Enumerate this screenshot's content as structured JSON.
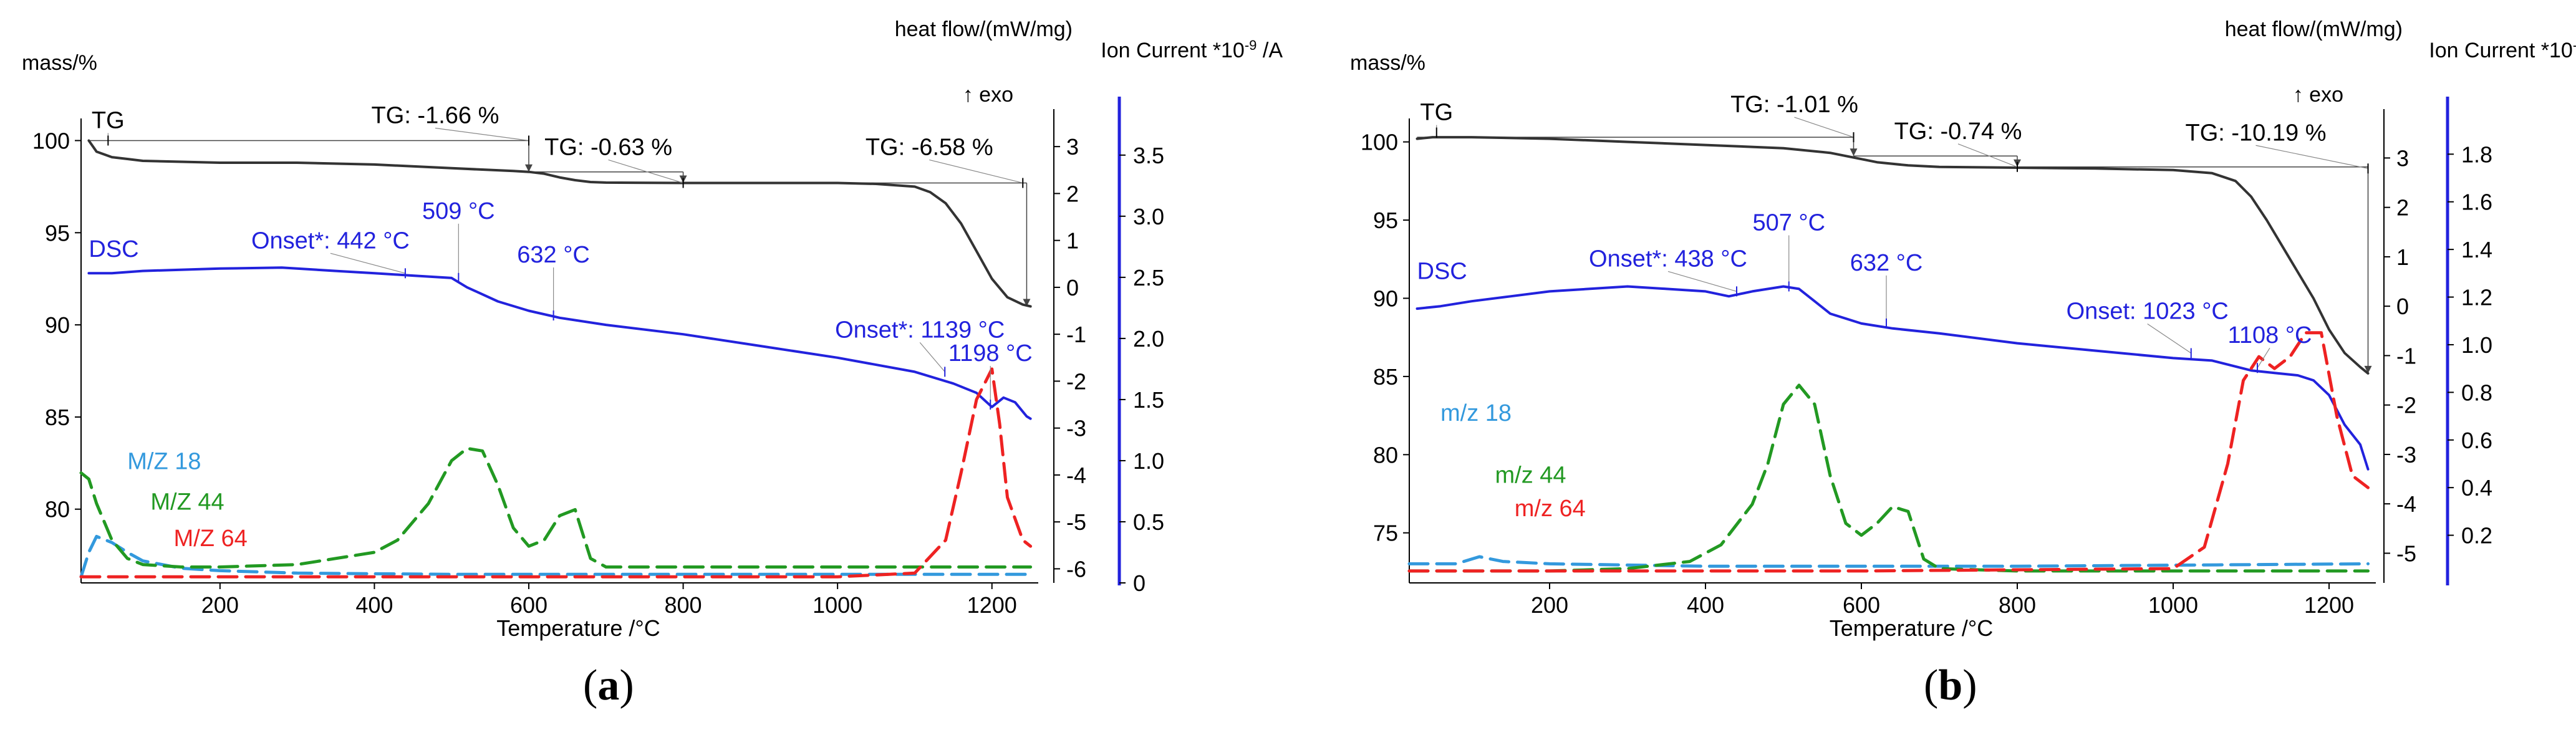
{
  "chart_data": [
    {
      "type": "line",
      "panel": "a",
      "caption": {
        "open": "(",
        "letter": "a",
        "close": ")"
      },
      "xlabel": "Temperature /°C",
      "xlim": [
        20,
        1260
      ],
      "xticks": [
        200,
        400,
        600,
        800,
        1000,
        1200
      ],
      "y_mass": {
        "label": "mass/%",
        "lim": [
          76,
          101.2
        ],
        "ticks": [
          80,
          85,
          90,
          95,
          100
        ]
      },
      "y_heat": {
        "label": "heat flow/(mW/mg)",
        "exo": "↑ exo",
        "lim": [
          -6.3,
          3.6
        ],
        "ticks": [
          3,
          2,
          1,
          0,
          -1,
          -2,
          -3,
          -4,
          -5,
          -6
        ]
      },
      "y_ion": {
        "label": "Ion Current *10",
        "label_sup": "-9",
        "label_unit": " /A",
        "lim": [
          0,
          3.8
        ],
        "ticks": [
          0,
          0.5,
          1.0,
          1.5,
          2.0,
          2.5,
          3.0,
          3.5
        ],
        "tick_labels": [
          "0",
          "0.5",
          "1.0",
          "1.5",
          "2.0",
          "2.5",
          "3.0",
          "3.5"
        ]
      },
      "series": [
        {
          "name": "TG",
          "axis": "mass",
          "color": "#333333",
          "dash": "solid",
          "x": [
            30,
            40,
            60,
            80,
            100,
            150,
            200,
            300,
            400,
            500,
            580,
            600,
            620,
            640,
            660,
            680,
            700,
            800,
            900,
            1000,
            1050,
            1100,
            1120,
            1140,
            1160,
            1180,
            1200,
            1220,
            1240,
            1250
          ],
          "y": [
            100,
            99.4,
            99.1,
            99.0,
            98.9,
            98.85,
            98.8,
            98.8,
            98.7,
            98.5,
            98.35,
            98.3,
            98.2,
            98.0,
            97.85,
            97.75,
            97.72,
            97.7,
            97.7,
            97.7,
            97.65,
            97.5,
            97.2,
            96.6,
            95.5,
            94.0,
            92.5,
            91.5,
            91.1,
            91.0
          ]
        },
        {
          "name": "DSC",
          "axis": "heat",
          "color": "#2222dd",
          "dash": "solid",
          "x": [
            30,
            60,
            100,
            200,
            280,
            350,
            400,
            450,
            500,
            520,
            560,
            600,
            640,
            700,
            800,
            900,
            1000,
            1100,
            1150,
            1180,
            1190,
            1200,
            1215,
            1230,
            1245,
            1250
          ],
          "y": [
            0.3,
            0.3,
            0.35,
            0.4,
            0.42,
            0.35,
            0.3,
            0.25,
            0.2,
            0.0,
            -0.3,
            -0.5,
            -0.65,
            -0.8,
            -1.0,
            -1.25,
            -1.5,
            -1.8,
            -2.05,
            -2.25,
            -2.4,
            -2.55,
            -2.35,
            -2.45,
            -2.75,
            -2.8
          ]
        },
        {
          "name": "M/Z 18",
          "axis": "ion",
          "color": "#3399dd",
          "dash": "dashed",
          "x": [
            20,
            30,
            40,
            60,
            80,
            100,
            150,
            200,
            300,
            500,
            800,
            1000,
            1250
          ],
          "y": [
            0.05,
            0.25,
            0.38,
            0.33,
            0.25,
            0.18,
            0.12,
            0.1,
            0.08,
            0.07,
            0.07,
            0.07,
            0.07
          ]
        },
        {
          "name": "M/Z 44",
          "axis": "ion",
          "color": "#229922",
          "dash": "dashed",
          "x": [
            20,
            30,
            40,
            60,
            80,
            100,
            150,
            200,
            300,
            400,
            430,
            470,
            500,
            520,
            540,
            560,
            580,
            600,
            620,
            640,
            660,
            680,
            700,
            800,
            900,
            1000,
            1100,
            1250
          ],
          "y": [
            0.9,
            0.85,
            0.65,
            0.35,
            0.2,
            0.15,
            0.13,
            0.13,
            0.15,
            0.25,
            0.35,
            0.65,
            1.0,
            1.1,
            1.08,
            0.8,
            0.45,
            0.3,
            0.35,
            0.55,
            0.6,
            0.2,
            0.13,
            0.13,
            0.13,
            0.13,
            0.13,
            0.13
          ]
        },
        {
          "name": "M/Z 64",
          "axis": "ion",
          "color": "#ee2222",
          "dash": "dashed",
          "x": [
            20,
            100,
            200,
            400,
            600,
            800,
            1000,
            1100,
            1140,
            1160,
            1180,
            1200,
            1210,
            1220,
            1240,
            1250
          ],
          "y": [
            0.05,
            0.05,
            0.05,
            0.05,
            0.05,
            0.05,
            0.05,
            0.08,
            0.35,
            0.9,
            1.5,
            1.75,
            1.3,
            0.7,
            0.35,
            0.3
          ]
        }
      ],
      "annotations": [
        {
          "text": "TG",
          "color": "#000000"
        },
        {
          "text": "TG: -1.66 %",
          "color": "#000000"
        },
        {
          "text": "TG: -0.63 %",
          "color": "#000000"
        },
        {
          "text": "TG: -6.58 %",
          "color": "#000000"
        },
        {
          "text": "DSC",
          "color": "#2222dd"
        },
        {
          "text": "Onset*: 442 °C",
          "color": "#2222dd"
        },
        {
          "text": "509 °C",
          "color": "#2222dd"
        },
        {
          "text": "632 °C",
          "color": "#2222dd"
        },
        {
          "text": "Onset*: 1139 °C",
          "color": "#2222dd"
        },
        {
          "text": "1198 °C",
          "color": "#2222dd"
        },
        {
          "text": "M/Z 18",
          "color": "#3399dd"
        },
        {
          "text": "M/Z 44",
          "color": "#229922"
        },
        {
          "text": "M/Z 64",
          "color": "#ee2222"
        }
      ]
    },
    {
      "type": "line",
      "panel": "b",
      "caption": {
        "open": "(",
        "letter": "b",
        "close": ")"
      },
      "xlabel": "Temperature /°C",
      "xlim": [
        20,
        1260
      ],
      "xticks": [
        200,
        400,
        600,
        800,
        1000,
        1200
      ],
      "y_mass": {
        "label": "mass/%",
        "lim": [
          71.8,
          101.5
        ],
        "ticks": [
          75,
          80,
          85,
          90,
          95,
          100
        ]
      },
      "y_heat": {
        "label": "heat flow/(mW/mg)",
        "exo": "↑ exo",
        "lim": [
          -5.6,
          3.8
        ],
        "ticks": [
          3,
          2,
          1,
          0,
          -1,
          -2,
          -3,
          -4,
          -5
        ]
      },
      "y_ion": {
        "label": "Ion Current *10",
        "label_sup": "-9",
        "label_unit": " /A",
        "lim": [
          0,
          1.95
        ],
        "ticks": [
          0.2,
          0.4,
          0.6,
          0.8,
          1.0,
          1.2,
          1.4,
          1.6,
          1.8
        ],
        "tick_labels": [
          "0.2",
          "0.4",
          "0.6",
          "0.8",
          "1.0",
          "1.2",
          "1.4",
          "1.6",
          "1.8"
        ]
      },
      "series": [
        {
          "name": "TG",
          "axis": "mass",
          "color": "#333333",
          "dash": "solid",
          "x": [
            30,
            50,
            100,
            200,
            300,
            400,
            500,
            560,
            590,
            620,
            660,
            700,
            800,
            900,
            1000,
            1050,
            1080,
            1100,
            1120,
            1150,
            1180,
            1200,
            1220,
            1240,
            1250
          ],
          "y": [
            100.2,
            100.3,
            100.3,
            100.2,
            100.0,
            99.8,
            99.6,
            99.3,
            99.0,
            98.7,
            98.5,
            98.4,
            98.35,
            98.3,
            98.2,
            98.0,
            97.5,
            96.5,
            95.0,
            92.5,
            90.0,
            88.0,
            86.5,
            85.6,
            85.2
          ]
        },
        {
          "name": "DSC",
          "axis": "heat",
          "color": "#2222dd",
          "dash": "solid",
          "x": [
            30,
            60,
            100,
            150,
            200,
            300,
            350,
            400,
            430,
            460,
            500,
            520,
            540,
            560,
            600,
            640,
            700,
            800,
            900,
            1000,
            1050,
            1100,
            1130,
            1160,
            1180,
            1200,
            1220,
            1240,
            1250
          ],
          "y": [
            -0.05,
            0.0,
            0.1,
            0.2,
            0.3,
            0.4,
            0.35,
            0.3,
            0.2,
            0.3,
            0.4,
            0.35,
            0.1,
            -0.15,
            -0.35,
            -0.45,
            -0.55,
            -0.75,
            -0.9,
            -1.05,
            -1.1,
            -1.3,
            -1.35,
            -1.4,
            -1.5,
            -1.8,
            -2.4,
            -2.8,
            -3.3
          ]
        },
        {
          "name": "m/z 18",
          "axis": "ion",
          "color": "#3399dd",
          "dash": "dashed",
          "x": [
            20,
            80,
            110,
            140,
            200,
            400,
            800,
            1250
          ],
          "y": [
            0.08,
            0.08,
            0.11,
            0.09,
            0.08,
            0.07,
            0.07,
            0.08
          ]
        },
        {
          "name": "m/z 44",
          "axis": "ion",
          "color": "#229922",
          "dash": "dashed",
          "x": [
            20,
            100,
            200,
            300,
            380,
            420,
            460,
            480,
            500,
            520,
            540,
            560,
            580,
            600,
            620,
            640,
            660,
            680,
            700,
            800,
            1000,
            1250
          ],
          "y": [
            0.05,
            0.05,
            0.05,
            0.06,
            0.09,
            0.16,
            0.33,
            0.5,
            0.75,
            0.83,
            0.75,
            0.45,
            0.25,
            0.2,
            0.25,
            0.32,
            0.3,
            0.1,
            0.06,
            0.05,
            0.05,
            0.05
          ]
        },
        {
          "name": "m/z 64",
          "axis": "ion",
          "color": "#ee2222",
          "dash": "dashed",
          "x": [
            20,
            200,
            600,
            1000,
            1040,
            1070,
            1090,
            1110,
            1130,
            1150,
            1170,
            1190,
            1210,
            1230,
            1250
          ],
          "y": [
            0.05,
            0.05,
            0.05,
            0.06,
            0.15,
            0.5,
            0.85,
            0.95,
            0.9,
            0.95,
            1.05,
            1.05,
            0.7,
            0.45,
            0.4
          ]
        }
      ],
      "annotations": [
        {
          "text": "TG",
          "color": "#000000"
        },
        {
          "text": "TG: -1.01 %",
          "color": "#000000"
        },
        {
          "text": "TG: -0.74 %",
          "color": "#000000"
        },
        {
          "text": "TG: -10.19 %",
          "color": "#000000"
        },
        {
          "text": "DSC",
          "color": "#2222dd"
        },
        {
          "text": "Onset*: 438 °C",
          "color": "#2222dd"
        },
        {
          "text": "507 °C",
          "color": "#2222dd"
        },
        {
          "text": "632 °C",
          "color": "#2222dd"
        },
        {
          "text": "Onset: 1023 °C",
          "color": "#2222dd"
        },
        {
          "text": "1108 °C",
          "color": "#2222dd"
        },
        {
          "text": "m/z 18",
          "color": "#3399dd"
        },
        {
          "text": "m/z 44",
          "color": "#229922"
        },
        {
          "text": "m/z 64",
          "color": "#ee2222"
        }
      ]
    }
  ]
}
